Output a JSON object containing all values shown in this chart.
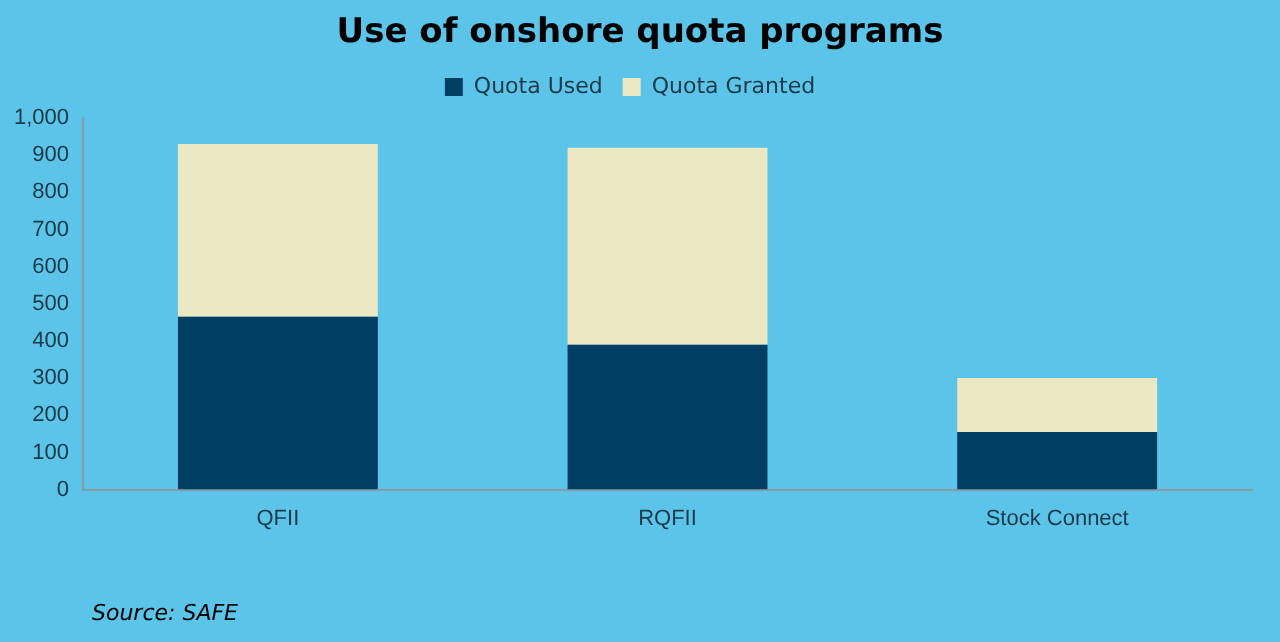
{
  "chart_data": {
    "type": "bar",
    "title": "Use of onshore quota programs",
    "categories": [
      "QFII",
      "RQFII",
      "Stock Connect"
    ],
    "stacked": true,
    "series": [
      {
        "name": "Quota Used",
        "color": "#003f63",
        "values": [
          465,
          390,
          155
        ]
      },
      {
        "name": "Quota Granted",
        "color": "#ede8c4",
        "values": [
          465,
          530,
          145
        ]
      }
    ],
    "ylim": [
      0,
      1000
    ],
    "yticks": [
      0,
      100,
      200,
      300,
      400,
      500,
      600,
      700,
      800,
      900,
      {
        "value": 1000,
        "label": "1,000"
      }
    ],
    "grid": false,
    "legend": "top",
    "annotations": [
      "Source: SAFE"
    ]
  }
}
